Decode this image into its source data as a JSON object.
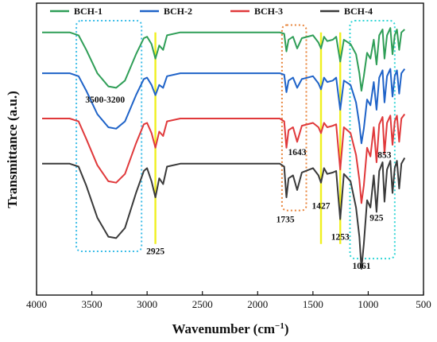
{
  "chart_data": {
    "type": "line",
    "xlabel_main": "Wavenumber (cm",
    "xlabel_sup": "−1",
    "xlabel_close": ")",
    "ylabel": "Transmittance (a.u.)",
    "xlim": [
      4000,
      500
    ],
    "x_ticks": [
      "4000",
      "3500",
      "3000",
      "2500",
      "2000",
      "1500",
      "1000",
      "500"
    ],
    "y_ticks_shown": false,
    "grid": false,
    "legend_position": "top",
    "series": [
      {
        "name": "BCH-1",
        "color": "#2f9e57",
        "baseline": 1.0,
        "points": [
          [
            3950,
            0
          ],
          [
            3700,
            0
          ],
          [
            3620,
            -0.02
          ],
          [
            3550,
            -0.12
          ],
          [
            3450,
            -0.28
          ],
          [
            3350,
            -0.37
          ],
          [
            3280,
            -0.38
          ],
          [
            3200,
            -0.33
          ],
          [
            3100,
            -0.15
          ],
          [
            3030,
            -0.04
          ],
          [
            3000,
            -0.03
          ],
          [
            2960,
            -0.08
          ],
          [
            2925,
            -0.18
          ],
          [
            2890,
            -0.09
          ],
          [
            2855,
            -0.12
          ],
          [
            2820,
            -0.02
          ],
          [
            2700,
            0
          ],
          [
            2000,
            0
          ],
          [
            1800,
            0
          ],
          [
            1760,
            -0.01
          ],
          [
            1740,
            -0.13
          ],
          [
            1720,
            -0.05
          ],
          [
            1680,
            -0.03
          ],
          [
            1643,
            -0.11
          ],
          [
            1600,
            -0.04
          ],
          [
            1500,
            -0.02
          ],
          [
            1450,
            -0.07
          ],
          [
            1427,
            -0.11
          ],
          [
            1400,
            -0.03
          ],
          [
            1370,
            -0.06
          ],
          [
            1320,
            -0.05
          ],
          [
            1290,
            -0.03
          ],
          [
            1253,
            -0.2
          ],
          [
            1220,
            -0.05
          ],
          [
            1160,
            -0.08
          ],
          [
            1110,
            -0.15
          ],
          [
            1080,
            -0.28
          ],
          [
            1061,
            -0.4
          ],
          [
            1040,
            -0.3
          ],
          [
            1010,
            -0.14
          ],
          [
            980,
            -0.18
          ],
          [
            950,
            -0.05
          ],
          [
            925,
            -0.22
          ],
          [
            900,
            -0.02
          ],
          [
            870,
            0.02
          ],
          [
            853,
            -0.18
          ],
          [
            830,
            -0.02
          ],
          [
            800,
            0.03
          ],
          [
            780,
            -0.15
          ],
          [
            760,
            -0.02
          ],
          [
            740,
            0.02
          ],
          [
            720,
            -0.12
          ],
          [
            700,
            0
          ],
          [
            670,
            0.02
          ]
        ]
      },
      {
        "name": "BCH-2",
        "color": "#1f63c8",
        "baseline": 0.72,
        "points": [
          [
            3950,
            0
          ],
          [
            3700,
            0
          ],
          [
            3620,
            -0.02
          ],
          [
            3550,
            -0.12
          ],
          [
            3450,
            -0.28
          ],
          [
            3350,
            -0.37
          ],
          [
            3280,
            -0.38
          ],
          [
            3200,
            -0.33
          ],
          [
            3100,
            -0.15
          ],
          [
            3030,
            -0.04
          ],
          [
            3000,
            -0.03
          ],
          [
            2960,
            -0.08
          ],
          [
            2925,
            -0.15
          ],
          [
            2890,
            -0.08
          ],
          [
            2855,
            -0.1
          ],
          [
            2820,
            -0.02
          ],
          [
            2700,
            0
          ],
          [
            2000,
            0
          ],
          [
            1800,
            0
          ],
          [
            1760,
            -0.01
          ],
          [
            1740,
            -0.13
          ],
          [
            1720,
            -0.05
          ],
          [
            1680,
            -0.03
          ],
          [
            1643,
            -0.1
          ],
          [
            1600,
            -0.04
          ],
          [
            1500,
            -0.02
          ],
          [
            1450,
            -0.07
          ],
          [
            1427,
            -0.11
          ],
          [
            1400,
            -0.03
          ],
          [
            1370,
            -0.06
          ],
          [
            1320,
            -0.05
          ],
          [
            1290,
            -0.03
          ],
          [
            1253,
            -0.25
          ],
          [
            1220,
            -0.05
          ],
          [
            1160,
            -0.08
          ],
          [
            1110,
            -0.2
          ],
          [
            1080,
            -0.35
          ],
          [
            1061,
            -0.48
          ],
          [
            1040,
            -0.38
          ],
          [
            1010,
            -0.18
          ],
          [
            980,
            -0.22
          ],
          [
            950,
            -0.06
          ],
          [
            925,
            -0.25
          ],
          [
            900,
            -0.03
          ],
          [
            870,
            0.02
          ],
          [
            853,
            -0.2
          ],
          [
            830,
            -0.02
          ],
          [
            800,
            0.03
          ],
          [
            780,
            -0.16
          ],
          [
            760,
            -0.02
          ],
          [
            740,
            0.02
          ],
          [
            720,
            -0.14
          ],
          [
            700,
            0
          ],
          [
            670,
            0.03
          ]
        ]
      },
      {
        "name": "BCH-3",
        "color": "#e0393b",
        "baseline": 0.41,
        "points": [
          [
            3950,
            0
          ],
          [
            3700,
            0
          ],
          [
            3620,
            -0.02
          ],
          [
            3550,
            -0.14
          ],
          [
            3450,
            -0.32
          ],
          [
            3350,
            -0.43
          ],
          [
            3280,
            -0.44
          ],
          [
            3200,
            -0.38
          ],
          [
            3100,
            -0.17
          ],
          [
            3030,
            -0.04
          ],
          [
            3000,
            -0.03
          ],
          [
            2960,
            -0.1
          ],
          [
            2925,
            -0.2
          ],
          [
            2890,
            -0.09
          ],
          [
            2855,
            -0.12
          ],
          [
            2820,
            -0.02
          ],
          [
            2700,
            0
          ],
          [
            2000,
            0
          ],
          [
            1800,
            0
          ],
          [
            1760,
            -0.02
          ],
          [
            1740,
            -0.2
          ],
          [
            1720,
            -0.08
          ],
          [
            1680,
            -0.06
          ],
          [
            1643,
            -0.16
          ],
          [
            1600,
            -0.05
          ],
          [
            1500,
            -0.03
          ],
          [
            1450,
            -0.06
          ],
          [
            1427,
            -0.1
          ],
          [
            1400,
            -0.03
          ],
          [
            1370,
            -0.06
          ],
          [
            1320,
            -0.05
          ],
          [
            1290,
            -0.04
          ],
          [
            1253,
            -0.35
          ],
          [
            1220,
            -0.06
          ],
          [
            1160,
            -0.1
          ],
          [
            1110,
            -0.25
          ],
          [
            1080,
            -0.42
          ],
          [
            1061,
            -0.58
          ],
          [
            1040,
            -0.46
          ],
          [
            1010,
            -0.2
          ],
          [
            980,
            -0.26
          ],
          [
            950,
            -0.06
          ],
          [
            925,
            -0.3
          ],
          [
            900,
            -0.04
          ],
          [
            870,
            0.01
          ],
          [
            853,
            -0.24
          ],
          [
            830,
            -0.03
          ],
          [
            800,
            0.02
          ],
          [
            780,
            -0.18
          ],
          [
            760,
            -0.02
          ],
          [
            740,
            0.02
          ],
          [
            720,
            -0.16
          ],
          [
            700,
            0
          ],
          [
            670,
            0.03
          ]
        ]
      },
      {
        "name": "BCH-4",
        "color": "#3a3a3a",
        "baseline": 0.1,
        "points": [
          [
            3950,
            0
          ],
          [
            3700,
            0
          ],
          [
            3620,
            -0.02
          ],
          [
            3550,
            -0.15
          ],
          [
            3450,
            -0.37
          ],
          [
            3350,
            -0.5
          ],
          [
            3280,
            -0.51
          ],
          [
            3200,
            -0.44
          ],
          [
            3100,
            -0.2
          ],
          [
            3030,
            -0.05
          ],
          [
            3000,
            -0.03
          ],
          [
            2960,
            -0.12
          ],
          [
            2925,
            -0.23
          ],
          [
            2890,
            -0.1
          ],
          [
            2855,
            -0.14
          ],
          [
            2820,
            -0.02
          ],
          [
            2700,
            0
          ],
          [
            2000,
            0
          ],
          [
            1800,
            0
          ],
          [
            1760,
            -0.02
          ],
          [
            1740,
            -0.23
          ],
          [
            1720,
            -0.1
          ],
          [
            1680,
            -0.08
          ],
          [
            1643,
            -0.18
          ],
          [
            1600,
            -0.06
          ],
          [
            1500,
            -0.03
          ],
          [
            1450,
            -0.08
          ],
          [
            1427,
            -0.13
          ],
          [
            1400,
            -0.03
          ],
          [
            1370,
            -0.07
          ],
          [
            1320,
            -0.06
          ],
          [
            1290,
            -0.05
          ],
          [
            1253,
            -0.38
          ],
          [
            1220,
            -0.07
          ],
          [
            1160,
            -0.12
          ],
          [
            1110,
            -0.3
          ],
          [
            1080,
            -0.5
          ],
          [
            1061,
            -0.72
          ],
          [
            1040,
            -0.55
          ],
          [
            1010,
            -0.25
          ],
          [
            980,
            -0.3
          ],
          [
            950,
            -0.08
          ],
          [
            925,
            -0.33
          ],
          [
            900,
            -0.05
          ],
          [
            870,
            0.01
          ],
          [
            853,
            -0.26
          ],
          [
            830,
            -0.04
          ],
          [
            800,
            0.02
          ],
          [
            780,
            -0.2
          ],
          [
            760,
            -0.03
          ],
          [
            740,
            0.02
          ],
          [
            720,
            -0.17
          ],
          [
            700,
            0
          ],
          [
            670,
            0.04
          ]
        ]
      }
    ],
    "annotations": [
      {
        "text": "3500-3200",
        "x": 3380,
        "y": 0.52
      },
      {
        "text": "2925",
        "x": 2925,
        "y": -0.52
      },
      {
        "text": "1643",
        "x": 1643,
        "y": 0.16
      },
      {
        "text": "1735",
        "x": 1750,
        "y": -0.3
      },
      {
        "text": "1427",
        "x": 1427,
        "y": -0.21
      },
      {
        "text": "1253",
        "x": 1253,
        "y": -0.42
      },
      {
        "text": "1061",
        "x": 1061,
        "y": -0.62
      },
      {
        "text": "925",
        "x": 925,
        "y": -0.29
      },
      {
        "text": "853",
        "x": 853,
        "y": 0.14
      }
    ],
    "marker_lines": [
      {
        "x": 2925,
        "color": "#f0f020"
      },
      {
        "x": 1427,
        "color": "#f0f020"
      },
      {
        "x": 1253,
        "color": "#f0f020"
      }
    ],
    "highlight_boxes": [
      {
        "x0": 3640,
        "x1": 3050,
        "y0": 1.08,
        "y1": -0.5,
        "color": "#3bbde8"
      },
      {
        "x0": 1780,
        "x1": 1560,
        "y0": 1.05,
        "y1": -0.22,
        "color": "#e8843b"
      },
      {
        "x0": 1165,
        "x1": 760,
        "y0": 1.08,
        "y1": -0.55,
        "color": "#33d6d6"
      }
    ]
  }
}
